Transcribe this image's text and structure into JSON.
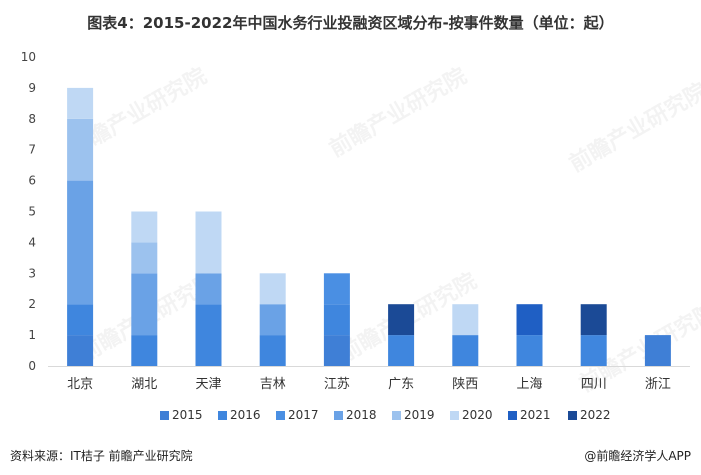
{
  "title": "图表4：2015-2022年中国水务行业投融资区域分布-按事件数量（单位：起）",
  "footer": {
    "source": "资料来源：IT桔子 前瞻产业研究院",
    "credit": "@前瞻经济学人APP"
  },
  "watermark": "前瞻产业研究院",
  "colors": {
    "2015": "#3f7fd6",
    "2016": "#3f86de",
    "2017": "#4a8fe3",
    "2018": "#6aa2e6",
    "2019": "#9cc2ee",
    "2020": "#bfd8f4",
    "2021": "#1f5fc4",
    "2022": "#1b4a96"
  },
  "chart_data": {
    "type": "bar",
    "stacked": true,
    "categories": [
      "北京",
      "湖北",
      "天津",
      "吉林",
      "江苏",
      "广东",
      "陕西",
      "上海",
      "四川",
      "浙江"
    ],
    "series": [
      {
        "name": "2015",
        "values": [
          1,
          0,
          0,
          0,
          1,
          0,
          0,
          0,
          0,
          1
        ]
      },
      {
        "name": "2016",
        "values": [
          1,
          1,
          2,
          1,
          1,
          1,
          1,
          1,
          1,
          0
        ]
      },
      {
        "name": "2017",
        "values": [
          0,
          0,
          0,
          0,
          1,
          0,
          0,
          0,
          0,
          0
        ]
      },
      {
        "name": "2018",
        "values": [
          4,
          2,
          1,
          1,
          0,
          0,
          0,
          0,
          0,
          0
        ]
      },
      {
        "name": "2019",
        "values": [
          2,
          1,
          0,
          0,
          0,
          0,
          0,
          0,
          0,
          0
        ]
      },
      {
        "name": "2020",
        "values": [
          1,
          1,
          2,
          1,
          0,
          0,
          1,
          0,
          0,
          0
        ]
      },
      {
        "name": "2021",
        "values": [
          0,
          0,
          0,
          0,
          0,
          0,
          0,
          1,
          0,
          0
        ]
      },
      {
        "name": "2022",
        "values": [
          0,
          0,
          0,
          0,
          0,
          1,
          0,
          0,
          1,
          0
        ]
      }
    ],
    "yticks": [
      0,
      1,
      2,
      3,
      4,
      5,
      6,
      7,
      8,
      9,
      10
    ],
    "ylim": [
      0,
      10
    ],
    "grid": false,
    "legend_position": "bottom"
  }
}
